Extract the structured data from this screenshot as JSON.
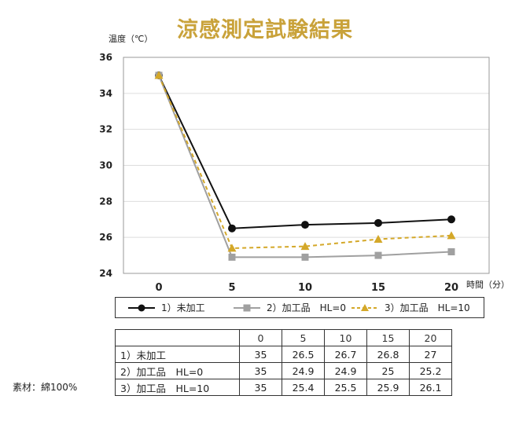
{
  "title": "涼感測定試験結果",
  "material_note": "素材：綿100%",
  "chart_data": {
    "type": "line",
    "title": "涼感測定試験結果",
    "xlabel": "時間（分）",
    "ylabel": "温度（℃）",
    "x": [
      0,
      5,
      10,
      15,
      20
    ],
    "x_tick_labels": [
      "0",
      "5",
      "10",
      "15",
      "20"
    ],
    "ylim": [
      24,
      36
    ],
    "y_ticks": [
      24,
      26,
      28,
      30,
      32,
      34,
      36
    ],
    "y_tick_labels": [
      "24",
      "26",
      "28",
      "30",
      "32",
      "34",
      "36"
    ],
    "grid": true,
    "legend_position": "bottom",
    "series": [
      {
        "name": "1）未加工",
        "values": [
          35,
          26.5,
          26.7,
          26.8,
          27
        ],
        "color": "#111111",
        "marker": "circle",
        "dash": "solid"
      },
      {
        "name": "2）加工品　HL=0",
        "values": [
          35,
          24.9,
          24.9,
          25,
          25.2
        ],
        "color": "#a0a0a0",
        "marker": "square",
        "dash": "solid"
      },
      {
        "name": "3）加工品　HL=10",
        "values": [
          35,
          25.4,
          25.5,
          25.9,
          26.1
        ],
        "color": "#d4a829",
        "marker": "triangle",
        "dash": "dashed"
      }
    ]
  },
  "table": {
    "header": [
      "",
      "0",
      "5",
      "10",
      "15",
      "20"
    ],
    "rows": [
      [
        "1）未加工",
        "35",
        "26.5",
        "26.7",
        "26.8",
        "27"
      ],
      [
        "2）加工品　HL=0",
        "35",
        "24.9",
        "24.9",
        "25",
        "25.2"
      ],
      [
        "3）加工品　HL=10",
        "35",
        "25.4",
        "25.5",
        "25.9",
        "26.1"
      ]
    ]
  }
}
